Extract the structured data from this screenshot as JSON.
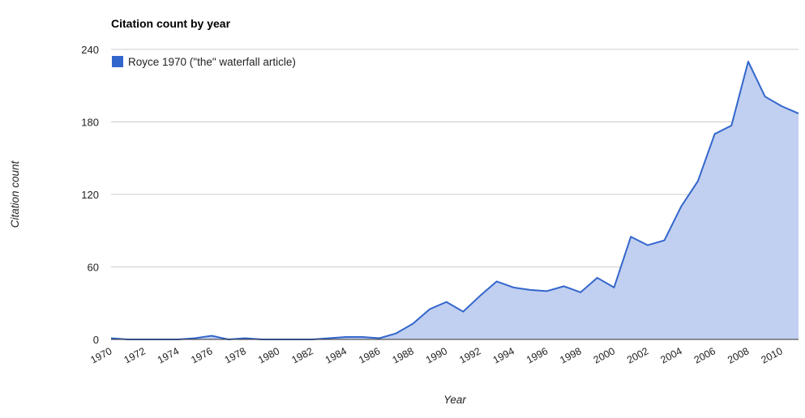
{
  "chart_data": {
    "type": "area",
    "title": "Citation count by year",
    "xlabel": "Year",
    "ylabel": "Citation count",
    "ylim": [
      0,
      240
    ],
    "yticks": [
      0,
      60,
      120,
      180,
      240
    ],
    "xlim": [
      1970,
      2011
    ],
    "xticks": [
      1970,
      1972,
      1974,
      1976,
      1978,
      1980,
      1982,
      1984,
      1986,
      1988,
      1990,
      1992,
      1994,
      1996,
      1998,
      2000,
      2002,
      2004,
      2006,
      2008,
      2010
    ],
    "grid": true,
    "legend_position": "top-left",
    "x": [
      1970,
      1971,
      1972,
      1973,
      1974,
      1975,
      1976,
      1977,
      1978,
      1979,
      1980,
      1981,
      1982,
      1983,
      1984,
      1985,
      1986,
      1987,
      1988,
      1989,
      1990,
      1991,
      1992,
      1993,
      1994,
      1995,
      1996,
      1997,
      1998,
      1999,
      2000,
      2001,
      2002,
      2003,
      2004,
      2005,
      2006,
      2007,
      2008,
      2009,
      2010,
      2011
    ],
    "series": [
      {
        "name": "Royce 1970 (\"the\" waterfall article)",
        "color": "#3366cc",
        "fill_color": "#c1cff0",
        "values": [
          1,
          0,
          0,
          0,
          0,
          1,
          3,
          0,
          1,
          0,
          0,
          0,
          0,
          1,
          2,
          2,
          1,
          5,
          13,
          25,
          31,
          23,
          36,
          48,
          43,
          41,
          40,
          44,
          39,
          51,
          43,
          85,
          78,
          82,
          110,
          131,
          170,
          177,
          230,
          201,
          193,
          187
        ]
      }
    ]
  }
}
